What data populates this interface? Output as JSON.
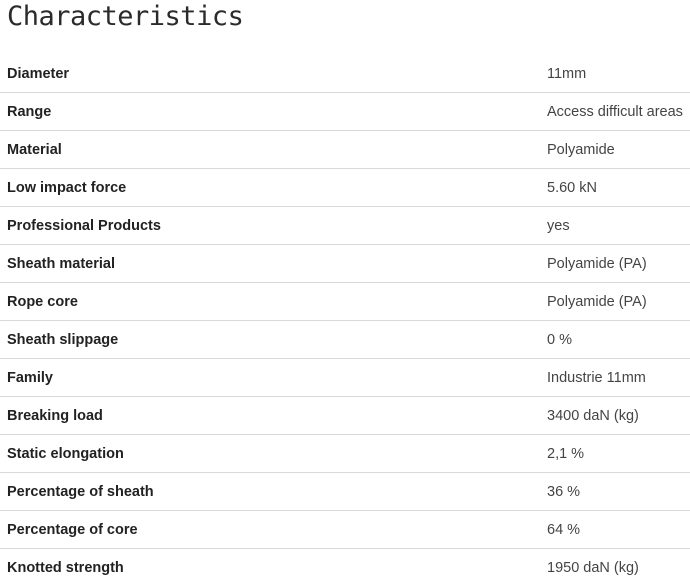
{
  "title": "Characteristics",
  "characteristics": [
    {
      "label": "Diameter",
      "value": "11mm"
    },
    {
      "label": "Range",
      "value": "Access difficult areas"
    },
    {
      "label": "Material",
      "value": "Polyamide"
    },
    {
      "label": "Low impact force",
      "value": "5.60 kN"
    },
    {
      "label": "Professional Products",
      "value": "yes"
    },
    {
      "label": "Sheath material",
      "value": "Polyamide (PA)"
    },
    {
      "label": "Rope core",
      "value": "Polyamide (PA)"
    },
    {
      "label": "Sheath slippage",
      "value": "0 %"
    },
    {
      "label": "Family",
      "value": "Industrie 11mm"
    },
    {
      "label": "Breaking load",
      "value": "3400 daN (kg)"
    },
    {
      "label": "Static elongation",
      "value": "2,1 %"
    },
    {
      "label": "Percentage of sheath",
      "value": "36 %"
    },
    {
      "label": "Percentage of core",
      "value": "64 %"
    },
    {
      "label": "Knotted strength",
      "value": "1950 daN (kg)"
    }
  ]
}
